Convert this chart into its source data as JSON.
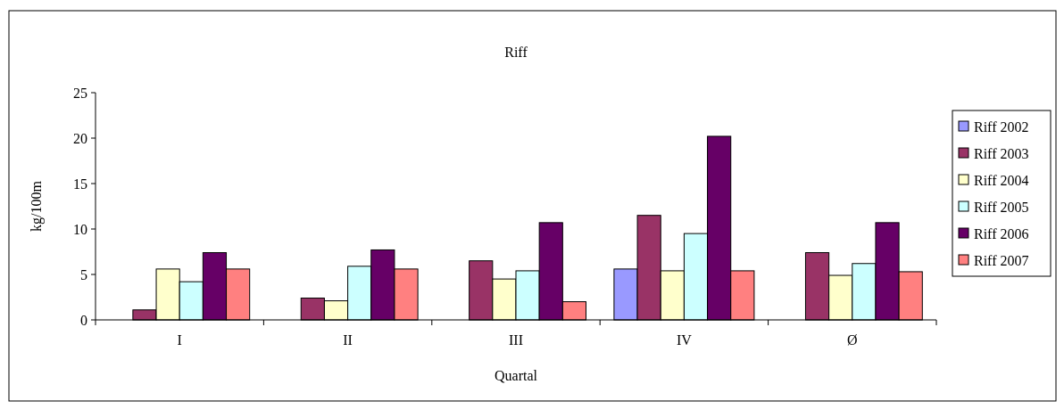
{
  "chart_data": {
    "type": "bar",
    "title": "Riff",
    "xlabel": "Quartal",
    "ylabel": "kg/100m",
    "categories": [
      "I",
      "II",
      "III",
      "IV",
      "Ø"
    ],
    "series": [
      {
        "name": "Riff 2002",
        "color": "#9999ff",
        "values": [
          null,
          null,
          null,
          5.6,
          null
        ]
      },
      {
        "name": "Riff 2003",
        "color": "#993366",
        "values": [
          1.1,
          2.4,
          6.5,
          11.5,
          7.4
        ]
      },
      {
        "name": "Riff 2004",
        "color": "#ffffcc",
        "values": [
          5.6,
          2.1,
          4.5,
          5.4,
          4.9
        ]
      },
      {
        "name": "Riff 2005",
        "color": "#ccffff",
        "values": [
          4.2,
          5.9,
          5.4,
          9.5,
          6.2
        ]
      },
      {
        "name": "Riff 2006",
        "color": "#660066",
        "values": [
          7.4,
          7.7,
          10.7,
          20.2,
          10.7
        ]
      },
      {
        "name": "Riff 2007",
        "color": "#ff8080",
        "values": [
          5.6,
          5.6,
          2.0,
          5.4,
          5.3
        ]
      }
    ],
    "ylim": [
      0,
      25
    ],
    "yticks": [
      0,
      5,
      10,
      15,
      20,
      25
    ],
    "grid": false,
    "legend": "right"
  }
}
